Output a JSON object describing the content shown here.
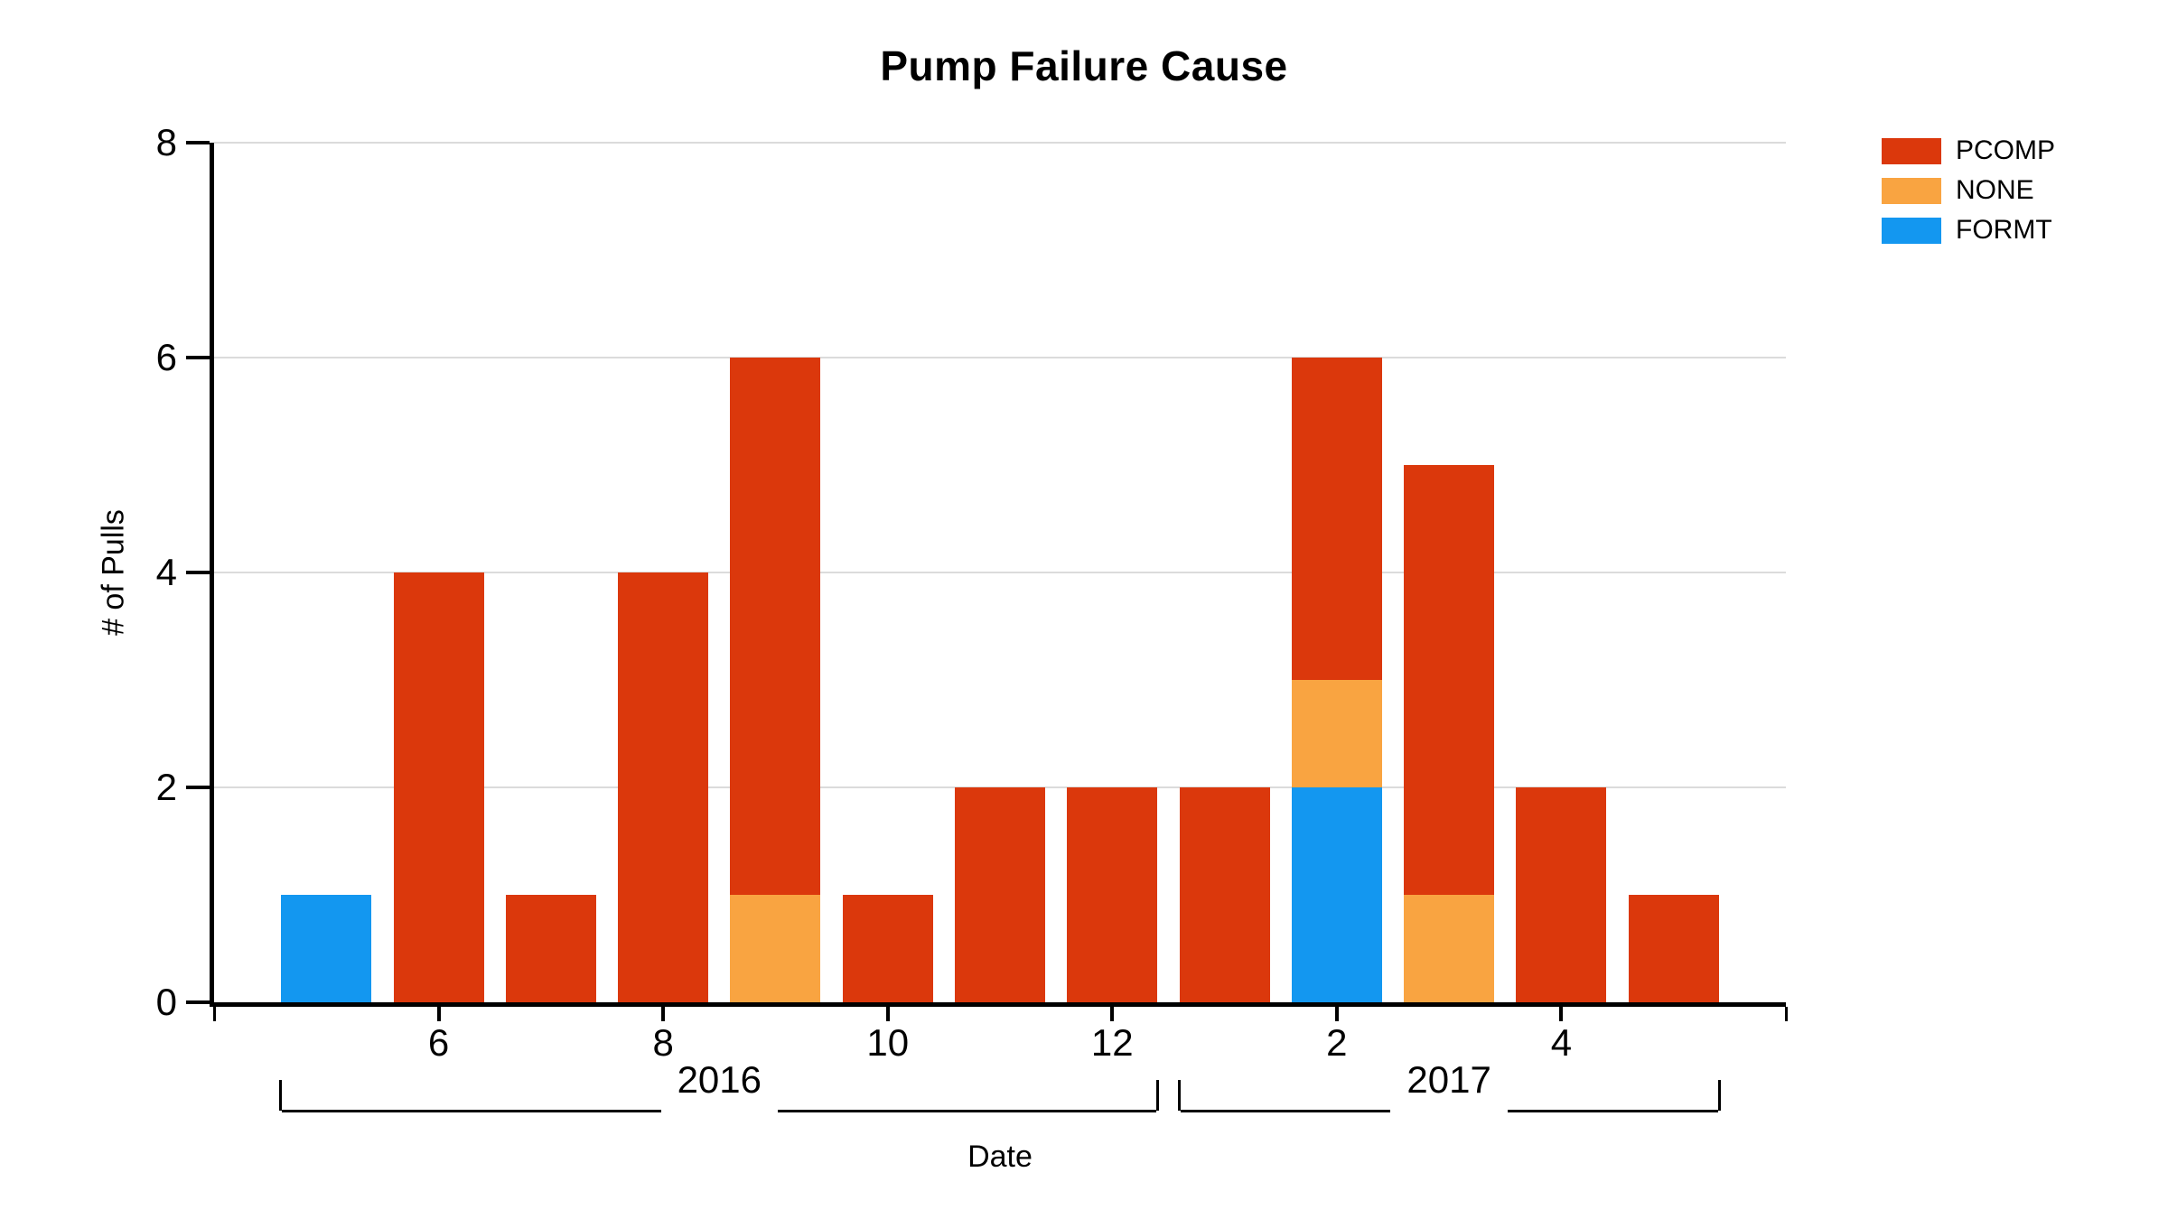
{
  "title": "Pump Failure Cause",
  "axes": {
    "y_label": "# of Pulls",
    "x_label": "Date",
    "y_ticks": [
      0,
      2,
      4,
      6,
      8
    ],
    "x_tick_labels": [
      "6",
      "8",
      "10",
      "12",
      "2",
      "4"
    ],
    "year_groups": [
      {
        "label": "2016",
        "first_bar": 0,
        "last_bar": 7
      },
      {
        "label": "2017",
        "first_bar": 8,
        "last_bar": 12
      }
    ]
  },
  "legend": [
    {
      "label": "PCOMP",
      "color": "#DB380C"
    },
    {
      "label": "NONE",
      "color": "#F9A441"
    },
    {
      "label": "FORMT",
      "color": "#1397F0"
    }
  ],
  "colors": {
    "pcomp": "#DB380C",
    "none": "#F9A441",
    "formt": "#1397F0",
    "gridline": "#DBDBDB",
    "axis": "#000000"
  },
  "chart_data": {
    "type": "bar",
    "stacked": true,
    "title": "Pump Failure Cause",
    "xlabel": "Date",
    "ylabel": "# of Pulls",
    "ylim": [
      0,
      8
    ],
    "grid": "horizontal",
    "legend_position": "top-right",
    "categories": [
      "2016-05",
      "2016-06",
      "2016-07",
      "2016-08",
      "2016-09",
      "2016-10",
      "2016-11",
      "2016-12",
      "2017-01",
      "2017-02",
      "2017-03",
      "2017-04",
      "2017-05"
    ],
    "series": [
      {
        "name": "PCOMP",
        "color": "#DB380C",
        "values": [
          0,
          4,
          1,
          4,
          5,
          1,
          2,
          2,
          2,
          3,
          4,
          2,
          1
        ]
      },
      {
        "name": "NONE",
        "color": "#F9A441",
        "values": [
          0,
          0,
          0,
          0,
          1,
          0,
          0,
          0,
          0,
          1,
          1,
          0,
          0
        ]
      },
      {
        "name": "FORMT",
        "color": "#1397F0",
        "values": [
          1,
          0,
          0,
          0,
          0,
          0,
          0,
          0,
          0,
          2,
          0,
          0,
          0
        ]
      }
    ],
    "stack_order_bottom_to_top": [
      "FORMT",
      "NONE",
      "PCOMP"
    ],
    "totals": [
      1,
      4,
      1,
      4,
      6,
      1,
      2,
      2,
      2,
      6,
      5,
      2,
      1
    ],
    "x_ticks": [
      {
        "slot": 2,
        "label": "6"
      },
      {
        "slot": 4,
        "label": "8"
      },
      {
        "slot": 6,
        "label": "10"
      },
      {
        "slot": 8,
        "label": "12"
      },
      {
        "slot": 10,
        "label": "2"
      },
      {
        "slot": 12,
        "label": "4"
      }
    ],
    "edge_tick_slots": [
      0,
      14
    ],
    "x_axis_slots": 14
  }
}
